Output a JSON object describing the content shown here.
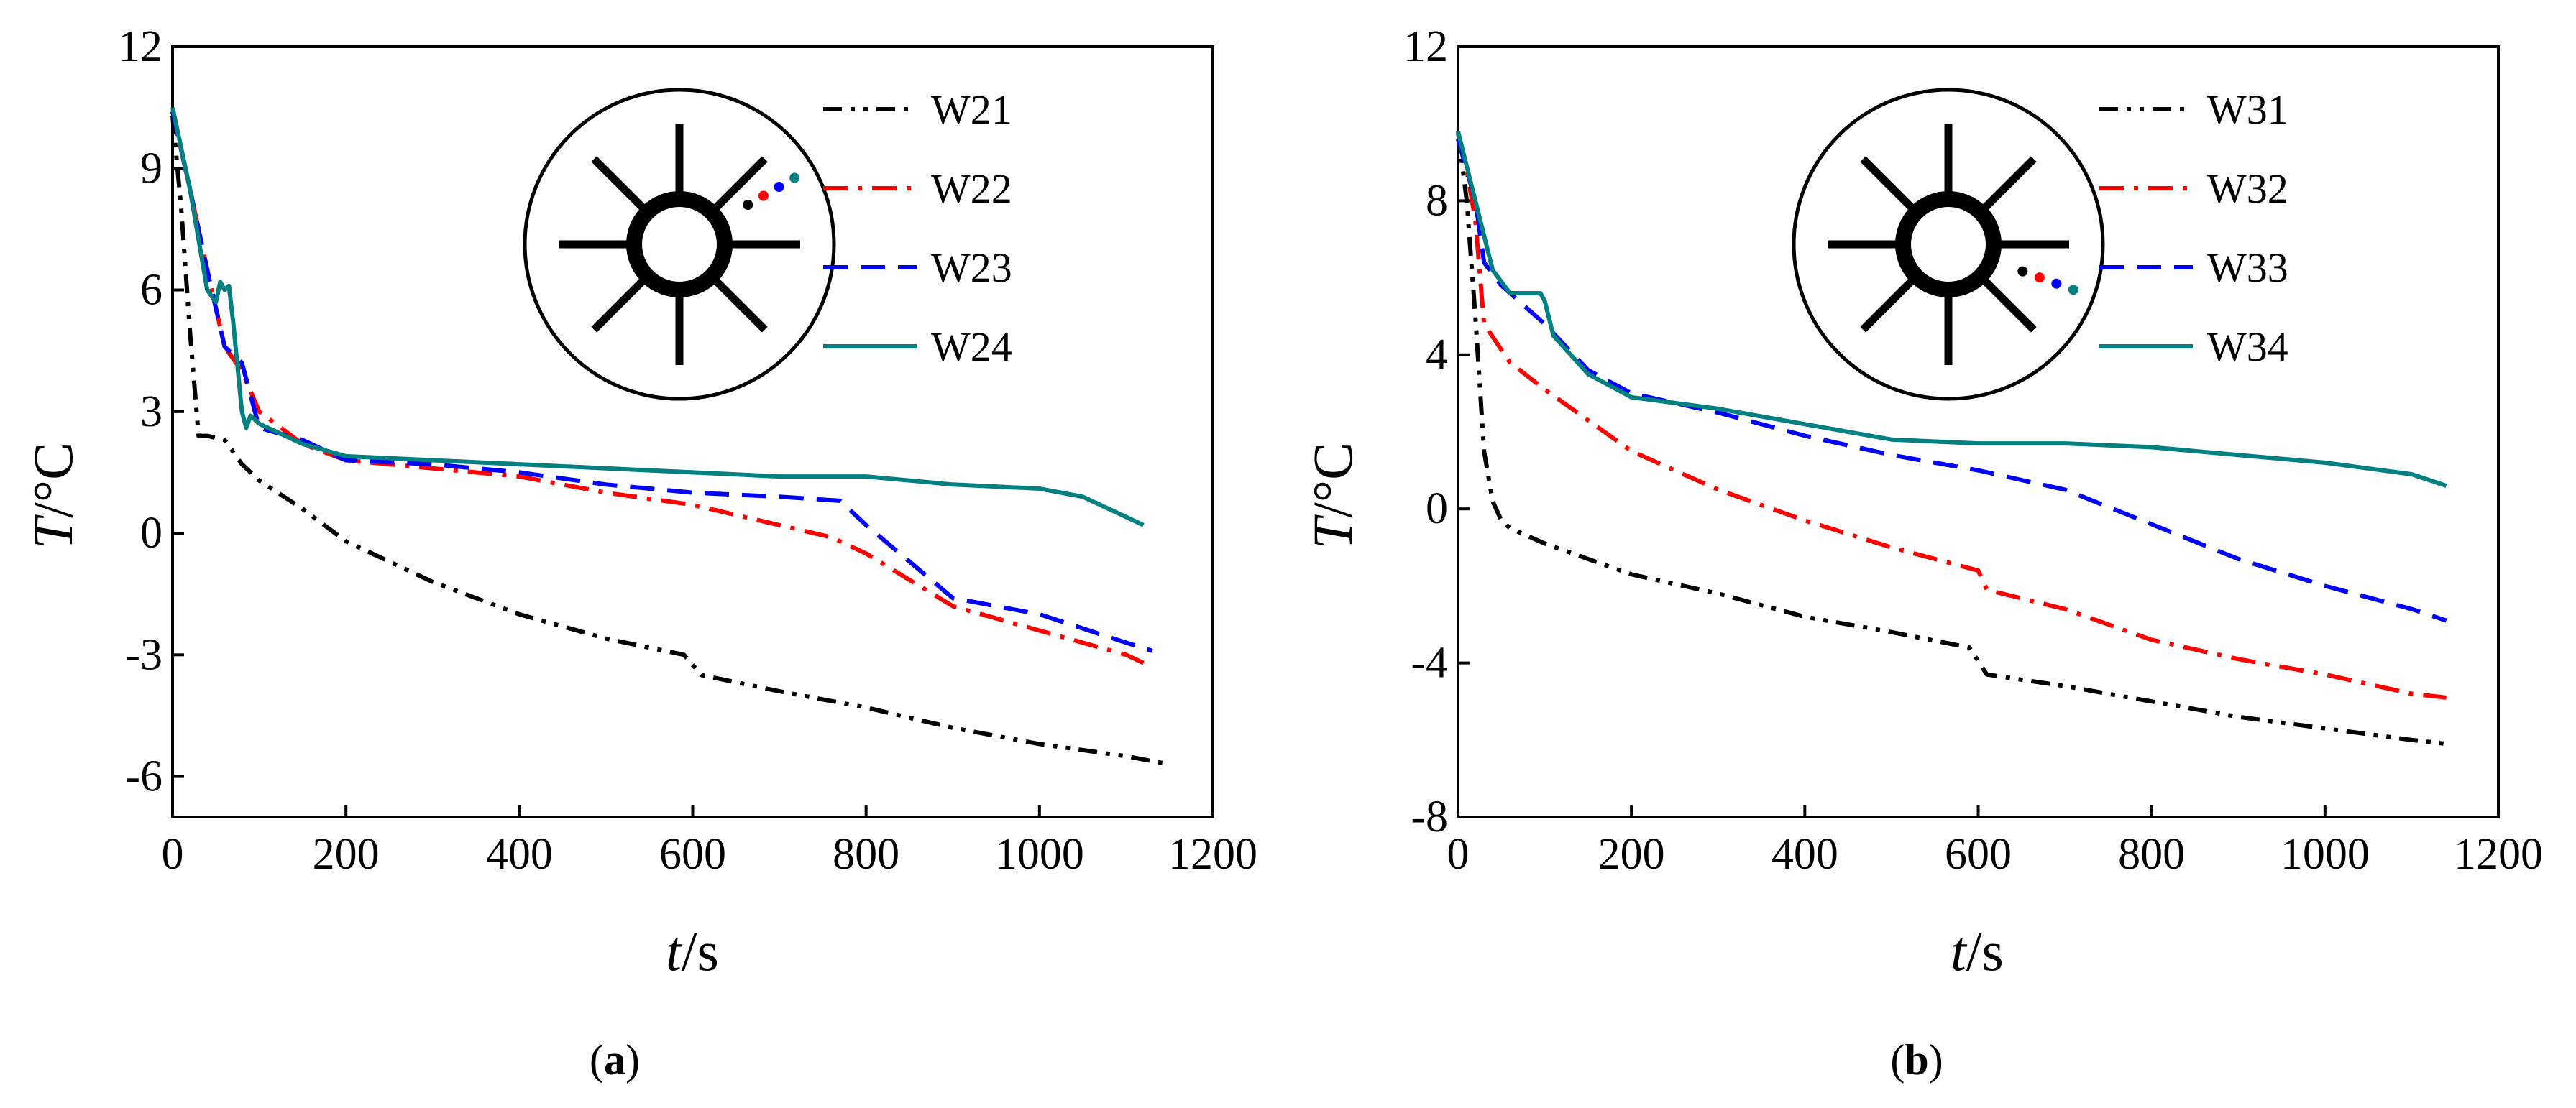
{
  "chart_data": [
    {
      "type": "line",
      "panel_label": "a",
      "xlabel": {
        "var": "t",
        "unit": "/s"
      },
      "ylabel": {
        "var": "T",
        "unit": "/°C"
      },
      "xlim": [
        0,
        1200
      ],
      "ylim": [
        -7,
        12
      ],
      "xticks": [
        "0",
        "200",
        "400",
        "600",
        "800",
        "1000",
        "1200"
      ],
      "yticks": [
        "-6",
        "-3",
        "0",
        "3",
        "6",
        "9",
        "12"
      ],
      "series": [
        {
          "name": "W21",
          "color": "#000000",
          "style": "dash-dot-dot",
          "x": [
            0,
            10,
            20,
            30,
            40,
            60,
            80,
            100,
            150,
            200,
            300,
            400,
            500,
            590,
            610,
            700,
            800,
            900,
            1000,
            1100,
            1150
          ],
          "y": [
            10.3,
            8.0,
            5.0,
            2.4,
            2.4,
            2.3,
            1.7,
            1.3,
            0.6,
            -0.2,
            -1.2,
            -2.0,
            -2.6,
            -3.0,
            -3.5,
            -3.9,
            -4.3,
            -4.8,
            -5.2,
            -5.5,
            -5.7
          ]
        },
        {
          "name": "W22",
          "color": "#ff0000",
          "style": "dash-dot",
          "x": [
            0,
            20,
            40,
            60,
            80,
            100,
            150,
            200,
            300,
            400,
            500,
            600,
            700,
            760,
            800,
            900,
            1000,
            1100,
            1130
          ],
          "y": [
            10.4,
            8.5,
            6.5,
            4.6,
            4.0,
            3.0,
            2.2,
            1.8,
            1.6,
            1.4,
            1.0,
            0.7,
            0.2,
            -0.1,
            -0.5,
            -1.8,
            -2.4,
            -3.0,
            -3.3
          ]
        },
        {
          "name": "W23",
          "color": "#0000ff",
          "style": "dash",
          "x": [
            0,
            20,
            40,
            60,
            80,
            100,
            150,
            200,
            300,
            400,
            500,
            600,
            700,
            770,
            800,
            900,
            950,
            1000,
            1100,
            1130
          ],
          "y": [
            10.4,
            8.5,
            6.5,
            4.6,
            4.2,
            2.6,
            2.3,
            1.8,
            1.7,
            1.5,
            1.2,
            1.0,
            0.9,
            0.8,
            0.2,
            -1.6,
            -1.8,
            -2.0,
            -2.7,
            -2.9
          ]
        },
        {
          "name": "W24",
          "color": "#008080",
          "style": "solid",
          "x": [
            0,
            20,
            40,
            50,
            55,
            60,
            65,
            70,
            80,
            85,
            90,
            100,
            150,
            200,
            300,
            400,
            500,
            600,
            700,
            800,
            900,
            1000,
            1050,
            1100,
            1120
          ],
          "y": [
            10.5,
            8.5,
            6.0,
            5.7,
            6.2,
            6.0,
            6.1,
            5.2,
            3.0,
            2.6,
            2.9,
            2.7,
            2.2,
            1.9,
            1.8,
            1.7,
            1.6,
            1.5,
            1.4,
            1.4,
            1.2,
            1.1,
            0.9,
            0.4,
            0.2
          ]
        }
      ]
    },
    {
      "type": "line",
      "panel_label": "b",
      "xlabel": {
        "var": "t",
        "unit": "/s"
      },
      "ylabel": {
        "var": "T",
        "unit": "/°C"
      },
      "xlim": [
        0,
        1200
      ],
      "ylim": [
        -8,
        12
      ],
      "xticks": [
        "0",
        "200",
        "400",
        "600",
        "800",
        "1000",
        "1200"
      ],
      "yticks": [
        "-8",
        "-4",
        "0",
        "4",
        "8",
        "12"
      ],
      "series": [
        {
          "name": "W31",
          "color": "#000000",
          "style": "dash-dot-dot",
          "x": [
            0,
            10,
            20,
            30,
            40,
            50,
            60,
            100,
            150,
            200,
            300,
            400,
            500,
            590,
            610,
            700,
            800,
            900,
            1000,
            1100,
            1140
          ],
          "y": [
            9.8,
            8.0,
            5.0,
            1.5,
            0.2,
            -0.3,
            -0.5,
            -0.9,
            -1.3,
            -1.7,
            -2.2,
            -2.8,
            -3.2,
            -3.6,
            -4.3,
            -4.6,
            -5.0,
            -5.4,
            -5.7,
            -6.0,
            -6.1
          ]
        },
        {
          "name": "W32",
          "color": "#ff0000",
          "style": "dash-dot",
          "x": [
            0,
            10,
            20,
            30,
            60,
            100,
            200,
            300,
            400,
            500,
            600,
            610,
            700,
            800,
            900,
            1000,
            1100,
            1140
          ],
          "y": [
            9.6,
            8.8,
            7.5,
            4.8,
            3.8,
            3.1,
            1.5,
            0.5,
            -0.3,
            -1.0,
            -1.6,
            -2.1,
            -2.6,
            -3.4,
            -3.9,
            -4.3,
            -4.8,
            -4.9
          ]
        },
        {
          "name": "W33",
          "color": "#0000ff",
          "style": "dash",
          "x": [
            0,
            20,
            30,
            50,
            100,
            150,
            200,
            300,
            400,
            500,
            600,
            700,
            800,
            900,
            1000,
            1100,
            1140
          ],
          "y": [
            9.6,
            8.0,
            6.4,
            5.8,
            4.8,
            3.6,
            3.0,
            2.5,
            1.9,
            1.4,
            1.0,
            0.5,
            -0.4,
            -1.3,
            -2.0,
            -2.6,
            -2.9
          ]
        },
        {
          "name": "W34",
          "color": "#008080",
          "style": "solid",
          "x": [
            0,
            20,
            40,
            60,
            80,
            95,
            100,
            110,
            150,
            200,
            300,
            400,
            500,
            600,
            700,
            800,
            900,
            1000,
            1100,
            1140
          ],
          "y": [
            9.8,
            8.0,
            6.2,
            5.6,
            5.6,
            5.6,
            5.4,
            4.5,
            3.5,
            2.9,
            2.6,
            2.2,
            1.8,
            1.7,
            1.7,
            1.6,
            1.4,
            1.2,
            0.9,
            0.6
          ]
        }
      ]
    }
  ]
}
